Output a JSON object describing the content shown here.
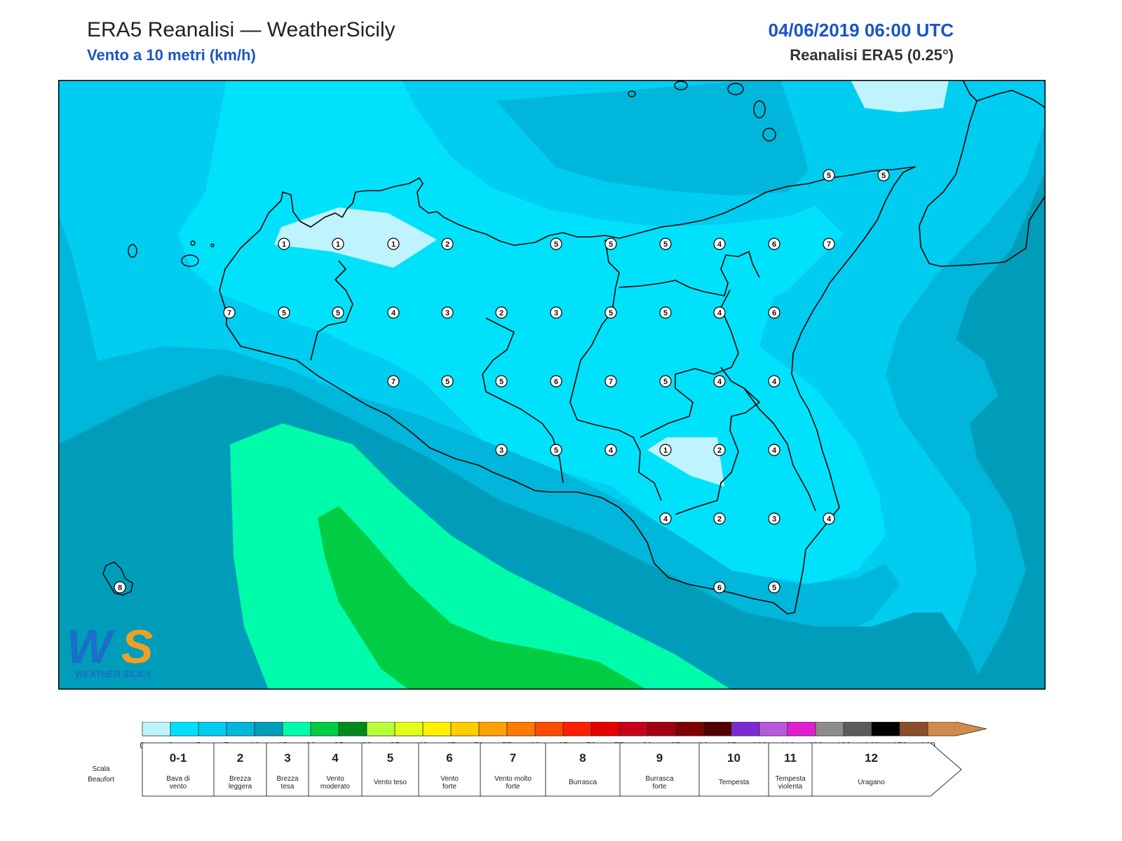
{
  "header": {
    "title": "ERA5 Reanalisi — WeatherSicily",
    "subtitle": "Vento a 10 metri (km/h)",
    "datetime": "04/06/2019 06:00 UTC",
    "model": "Reanalisi ERA5 (0.25°)"
  },
  "logo": {
    "text": "WEATHER SICILY"
  },
  "colors": {
    "c0_2": "#bff3fd",
    "c2_5": "#00e2fb",
    "c5_7": "#00cdf0",
    "c7_10": "#00b6da",
    "c10_15": "#009dba",
    "c15_20": "#00fcaa",
    "c20_25": "#00cc44",
    "c25_30": "#008a1e",
    "coast": "#000000",
    "title_blue": "#1a55c4"
  },
  "legend": {
    "ticks": [
      "0",
      "2",
      "5",
      "7",
      "10",
      "15",
      "20",
      "25",
      "30",
      "35",
      "40",
      "45",
      "50",
      "55",
      "60",
      "65",
      "70",
      "75",
      "80",
      "85",
      "90",
      "95",
      "100",
      "110",
      "120",
      "130",
      "140",
      "150",
      "160"
    ],
    "colors": [
      "#bff3fd",
      "#00e2fb",
      "#00cdf0",
      "#00b6da",
      "#009dba",
      "#00fcaa",
      "#00cc44",
      "#008a1e",
      "#b8ff3a",
      "#e3ff18",
      "#fff000",
      "#ffce00",
      "#ffa200",
      "#ff7a00",
      "#ff4a00",
      "#ff1e00",
      "#e60000",
      "#c80018",
      "#a00010",
      "#7d0000",
      "#520000",
      "#7b2bd4",
      "#b65ad8",
      "#e11ed0",
      "#8c8c8c",
      "#5b5b5b",
      "#000000",
      "#8a4e2a",
      "#cf8a4c"
    ],
    "beaufort_title_1": "Scala",
    "beaufort_title_2": "Beaufort",
    "beaufort": [
      {
        "num": "0-1",
        "l1": "Bava di",
        "l2": "vento"
      },
      {
        "num": "2",
        "l1": "Brezza",
        "l2": "leggera"
      },
      {
        "num": "3",
        "l1": "Brezza",
        "l2": "tesa"
      },
      {
        "num": "4",
        "l1": "Vento",
        "l2": "moderato"
      },
      {
        "num": "5",
        "l1": "Vento teso",
        "l2": ""
      },
      {
        "num": "6",
        "l1": "Vento",
        "l2": "forte"
      },
      {
        "num": "7",
        "l1": "Vento molto",
        "l2": "forte"
      },
      {
        "num": "8",
        "l1": "Burrasca",
        "l2": ""
      },
      {
        "num": "9",
        "l1": "Burrasca",
        "l2": "forte"
      },
      {
        "num": "10",
        "l1": "Tempesta",
        "l2": ""
      },
      {
        "num": "11",
        "l1": "Tempesta",
        "l2": "violenta"
      },
      {
        "num": "12",
        "l1": "Uragano",
        "l2": ""
      }
    ]
  },
  "stations": [
    {
      "v": "5"
    },
    {
      "v": "5"
    },
    {
      "v": "1"
    },
    {
      "v": "1"
    },
    {
      "v": "1"
    },
    {
      "v": "2"
    },
    {
      "v": "5"
    },
    {
      "v": "5"
    },
    {
      "v": "5"
    },
    {
      "v": "4"
    },
    {
      "v": "6"
    },
    {
      "v": "7"
    },
    {
      "v": "7"
    },
    {
      "v": "5"
    },
    {
      "v": "5"
    },
    {
      "v": "4"
    },
    {
      "v": "3"
    },
    {
      "v": "2"
    },
    {
      "v": "3"
    },
    {
      "v": "5"
    },
    {
      "v": "5"
    },
    {
      "v": "4"
    },
    {
      "v": "6"
    },
    {
      "v": "7"
    },
    {
      "v": "5"
    },
    {
      "v": "5"
    },
    {
      "v": "6"
    },
    {
      "v": "7"
    },
    {
      "v": "5"
    },
    {
      "v": "4"
    },
    {
      "v": "4"
    },
    {
      "v": "3"
    },
    {
      "v": "5"
    },
    {
      "v": "4"
    },
    {
      "v": "1"
    },
    {
      "v": "2"
    },
    {
      "v": "4"
    },
    {
      "v": "4"
    },
    {
      "v": "2"
    },
    {
      "v": "3"
    },
    {
      "v": "4"
    },
    {
      "v": "6"
    },
    {
      "v": "5"
    },
    {
      "v": "8"
    }
  ]
}
